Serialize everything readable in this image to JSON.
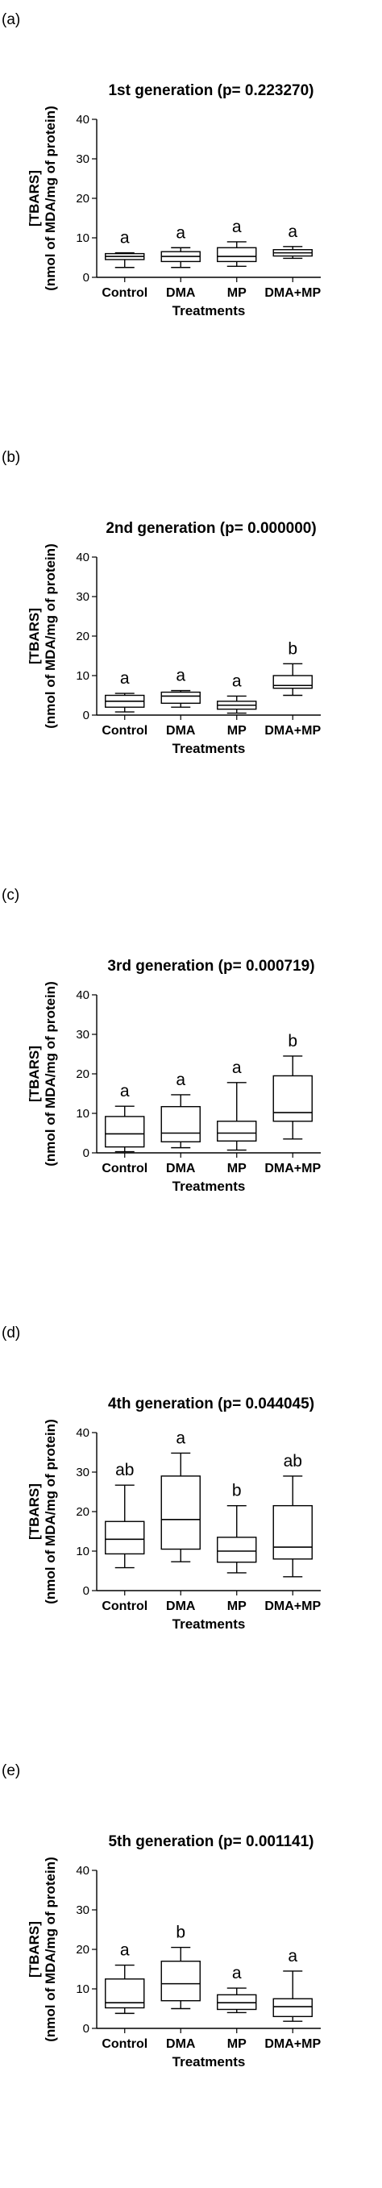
{
  "chart_data": [
    {
      "type": "boxplot",
      "panel_label": "(a)",
      "title": "1st generation (p= 0.223270)",
      "xlabel": "Treatments",
      "ylabel": [
        "[TBARS]",
        "(nmol of MDA/mg of protein)"
      ],
      "ylim": [
        0,
        40
      ],
      "yticks": [
        0,
        10,
        20,
        30,
        40
      ],
      "categories": [
        "Control",
        "DMA",
        "MP",
        "DMA+MP"
      ],
      "boxes": [
        {
          "category": "Control",
          "min": 2.5,
          "q1": 4.5,
          "median": 5.3,
          "q3": 6.0,
          "max": 6.2,
          "letter": "a"
        },
        {
          "category": "DMA",
          "min": 2.5,
          "q1": 4.0,
          "median": 5.3,
          "q3": 6.5,
          "max": 7.5,
          "letter": "a"
        },
        {
          "category": "MP",
          "min": 2.8,
          "q1": 4.0,
          "median": 5.3,
          "q3": 7.5,
          "max": 9.0,
          "letter": "a"
        },
        {
          "category": "DMA+MP",
          "min": 4.8,
          "q1": 5.4,
          "median": 6.2,
          "q3": 7.0,
          "max": 7.8,
          "letter": "a"
        }
      ]
    },
    {
      "type": "boxplot",
      "panel_label": "(b)",
      "title": "2nd generation (p= 0.000000)",
      "xlabel": "Treatments",
      "ylabel": [
        "[TBARS]",
        "(nmol of MDA/mg of protein)"
      ],
      "ylim": [
        0,
        40
      ],
      "yticks": [
        0,
        10,
        20,
        30,
        40
      ],
      "categories": [
        "Control",
        "DMA",
        "MP",
        "DMA+MP"
      ],
      "boxes": [
        {
          "category": "Control",
          "min": 0.8,
          "q1": 2.0,
          "median": 3.5,
          "q3": 5.0,
          "max": 5.5,
          "letter": "a"
        },
        {
          "category": "DMA",
          "min": 2.0,
          "q1": 3.0,
          "median": 4.8,
          "q3": 5.8,
          "max": 6.2,
          "letter": "a"
        },
        {
          "category": "MP",
          "min": 0.5,
          "q1": 1.5,
          "median": 2.5,
          "q3": 3.5,
          "max": 4.8,
          "letter": "a"
        },
        {
          "category": "DMA+MP",
          "min": 5.0,
          "q1": 6.8,
          "median": 7.5,
          "q3": 10.0,
          "max": 13.0,
          "letter": "b"
        }
      ]
    },
    {
      "type": "boxplot",
      "panel_label": "(c)",
      "title": "3rd generation (p= 0.000719)",
      "xlabel": "Treatments",
      "ylabel": [
        "[TBARS]",
        "(nmol of MDA/mg of protein)"
      ],
      "ylim": [
        0,
        40
      ],
      "yticks": [
        0,
        10,
        20,
        30,
        40
      ],
      "categories": [
        "Control",
        "DMA",
        "MP",
        "DMA+MP"
      ],
      "boxes": [
        {
          "category": "Control",
          "min": 0.3,
          "q1": 1.5,
          "median": 4.8,
          "q3": 9.2,
          "max": 11.8,
          "letter": "a"
        },
        {
          "category": "DMA",
          "min": 1.3,
          "q1": 2.8,
          "median": 5.0,
          "q3": 11.7,
          "max": 14.7,
          "letter": "a"
        },
        {
          "category": "MP",
          "min": 0.7,
          "q1": 3.0,
          "median": 5.0,
          "q3": 8.0,
          "max": 17.8,
          "letter": "a"
        },
        {
          "category": "DMA+MP",
          "min": 3.5,
          "q1": 8.0,
          "median": 10.2,
          "q3": 19.5,
          "max": 24.5,
          "letter": "b"
        }
      ]
    },
    {
      "type": "boxplot",
      "panel_label": "(d)",
      "title": "4th generation (p= 0.044045)",
      "xlabel": "Treatments",
      "ylabel": [
        "[TBARS]",
        "(nmol of MDA/mg of protein)"
      ],
      "ylim": [
        0,
        40
      ],
      "yticks": [
        0,
        10,
        20,
        30,
        40
      ],
      "categories": [
        "Control",
        "DMA",
        "MP",
        "DMA+MP"
      ],
      "boxes": [
        {
          "category": "Control",
          "min": 5.8,
          "q1": 9.3,
          "median": 13.0,
          "q3": 17.5,
          "max": 26.7,
          "letter": "ab"
        },
        {
          "category": "DMA",
          "min": 7.3,
          "q1": 10.5,
          "median": 18.0,
          "q3": 29.0,
          "max": 34.8,
          "letter": "a"
        },
        {
          "category": "MP",
          "min": 4.5,
          "q1": 7.2,
          "median": 10.0,
          "q3": 13.5,
          "max": 21.5,
          "letter": "b"
        },
        {
          "category": "DMA+MP",
          "min": 3.5,
          "q1": 8.0,
          "median": 11.0,
          "q3": 21.5,
          "max": 29.0,
          "letter": "ab"
        }
      ]
    },
    {
      "type": "boxplot",
      "panel_label": "(e)",
      "title": "5th generation (p= 0.001141)",
      "xlabel": "Treatments",
      "ylabel": [
        "[TBARS]",
        "(nmol of MDA/mg of protein)"
      ],
      "ylim": [
        0,
        40
      ],
      "yticks": [
        0,
        10,
        20,
        30,
        40
      ],
      "categories": [
        "Control",
        "DMA",
        "MP",
        "DMA+MP"
      ],
      "boxes": [
        {
          "category": "Control",
          "min": 3.8,
          "q1": 5.2,
          "median": 6.5,
          "q3": 12.5,
          "max": 16.0,
          "letter": "a"
        },
        {
          "category": "DMA",
          "min": 5.0,
          "q1": 7.0,
          "median": 11.3,
          "q3": 17.0,
          "max": 20.5,
          "letter": "b"
        },
        {
          "category": "MP",
          "min": 4.0,
          "q1": 4.8,
          "median": 6.5,
          "q3": 8.5,
          "max": 10.2,
          "letter": "a"
        },
        {
          "category": "DMA+MP",
          "min": 1.8,
          "q1": 3.0,
          "median": 5.5,
          "q3": 7.5,
          "max": 14.5,
          "letter": "a"
        }
      ]
    }
  ]
}
